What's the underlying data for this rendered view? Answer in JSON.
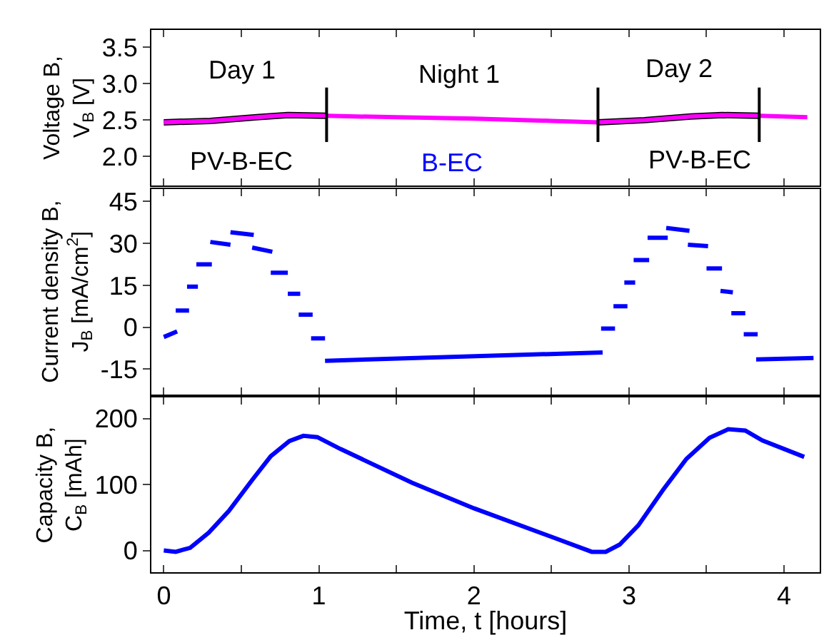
{
  "chart_data": [
    {
      "type": "line",
      "ylabel": "Voltage B,\nV$_{B}$ [V]",
      "xlim": [
        -0.08,
        4.23
      ],
      "ylim": [
        1.6,
        3.74
      ],
      "xticks": [
        {
          "value": 0,
          "label": null
        },
        {
          "value": 0.5,
          "label": null
        },
        {
          "value": 1,
          "label": null
        },
        {
          "value": 1.5,
          "label": null
        },
        {
          "value": 2,
          "label": null
        },
        {
          "value": 2.5,
          "label": null
        },
        {
          "value": 3,
          "label": null
        },
        {
          "value": 3.5,
          "label": null
        },
        {
          "value": 4,
          "label": null
        }
      ],
      "yticks": [
        {
          "value": 2.0,
          "label": "2.0"
        },
        {
          "value": 2.5,
          "label": "2.5"
        },
        {
          "value": 3.0,
          "label": "3.0"
        },
        {
          "value": 3.5,
          "label": "3.5"
        }
      ],
      "tick_labels": "y",
      "marker": "none",
      "series": [
        {
          "color": "#000000",
          "x": [
            0,
            0.3,
            0.6,
            0.8,
            1.05,
            null,
            2.8,
            3.1,
            3.4,
            3.6,
            3.84
          ],
          "values": [
            2.47,
            2.49,
            2.54,
            2.57,
            2.56,
            null,
            2.47,
            2.5,
            2.55,
            2.57,
            2.56
          ]
        },
        {
          "color": "#ff00ff",
          "x": [
            0,
            0.3,
            0.6,
            0.8,
            1.05,
            1.5,
            2.0,
            2.5,
            2.8,
            3.1,
            3.4,
            3.6,
            3.84,
            4.15
          ],
          "values": [
            2.47,
            2.49,
            2.54,
            2.57,
            2.56,
            2.54,
            2.52,
            2.49,
            2.47,
            2.5,
            2.55,
            2.57,
            2.56,
            2.54
          ]
        }
      ],
      "ref_lines": [
        {
          "axis": "x",
          "value": 1.05,
          "color": "#000000"
        },
        {
          "axis": "x",
          "value": 2.8,
          "color": "#000000"
        },
        {
          "axis": "x",
          "value": 3.84,
          "color": "#000000"
        }
      ],
      "annotations": [
        "Day 1",
        "Night 1",
        "Day 2",
        "PV-B-EC",
        "B-EC",
        "PV-B-EC"
      ]
    },
    {
      "type": "line",
      "ylabel": "Current density B,\nJ$_{B}$ [mA/cm$^{2}$]",
      "xlim": [
        -0.08,
        4.23
      ],
      "ylim": [
        -24,
        49.5
      ],
      "xticks": [
        {
          "value": 0,
          "label": null
        },
        {
          "value": 0.5,
          "label": null
        },
        {
          "value": 1,
          "label": null
        },
        {
          "value": 1.5,
          "label": null
        },
        {
          "value": 2,
          "label": null
        },
        {
          "value": 2.5,
          "label": null
        },
        {
          "value": 3,
          "label": null
        },
        {
          "value": 3.5,
          "label": null
        },
        {
          "value": 4,
          "label": null
        }
      ],
      "yticks": [
        -15,
        0,
        15,
        30,
        45
      ],
      "tick_labels": "y",
      "marker": "none",
      "series": [
        {
          "color": "#0000ff",
          "x": [
            0,
            0.086,
            null,
            0.077,
            0.163,
            null,
            0.15,
            0.22,
            null,
            0.21,
            0.31,
            null,
            0.3,
            0.43,
            null,
            0.43,
            0.58,
            null,
            0.57,
            0.7,
            null,
            0.69,
            0.8,
            null,
            0.8,
            0.88,
            null,
            0.87,
            0.96,
            null,
            0.95,
            1.04,
            null,
            1.04,
            2.83,
            null,
            2.82,
            2.91,
            null,
            2.9,
            2.99,
            null,
            2.97,
            3.04,
            null,
            3.03,
            3.13,
            null,
            3.12,
            3.25,
            null,
            3.24,
            3.39,
            null,
            3.38,
            3.51,
            null,
            3.5,
            3.6,
            null,
            3.59,
            3.67,
            null,
            3.66,
            3.75,
            null,
            3.74,
            3.83,
            null,
            3.82,
            4.19
          ],
          "values": [
            -3.5,
            -1.5,
            null,
            6,
            6,
            null,
            14.5,
            14.5,
            null,
            22.5,
            22.5,
            null,
            30.5,
            29.5,
            null,
            34,
            33,
            null,
            28.5,
            27,
            null,
            19.5,
            19.5,
            null,
            12,
            12,
            null,
            4.5,
            4.5,
            null,
            -4,
            -4,
            null,
            -12,
            -9,
            null,
            -0.5,
            -0.5,
            null,
            7.5,
            7.5,
            null,
            16,
            16,
            null,
            24,
            24,
            null,
            32,
            32,
            null,
            35.5,
            34.5,
            null,
            29.5,
            29,
            null,
            21,
            21,
            null,
            13,
            12.5,
            null,
            5,
            5,
            null,
            -2.5,
            -2.5,
            null,
            -11.5,
            -11
          ]
        }
      ]
    },
    {
      "type": "line",
      "xlabel": "Time, t [hours]",
      "ylabel": "Capacity B,\nC$_{B}$ [mAh]",
      "xlim": [
        -0.08,
        4.23
      ],
      "ylim": [
        -33,
        232
      ],
      "xticks": [
        0,
        {
          "value": 0.5,
          "label": null
        },
        1,
        {
          "value": 1.5,
          "label": null
        },
        2,
        {
          "value": 2.5,
          "label": null
        },
        3,
        {
          "value": 3.5,
          "label": null
        },
        4
      ],
      "yticks": [
        0,
        100,
        200
      ],
      "marker": "none",
      "series": [
        {
          "color": "#0000ff",
          "x": [
            0,
            0.077,
            0.17,
            0.29,
            0.42,
            0.57,
            0.69,
            0.81,
            0.9,
            0.99,
            1.14,
            1.6,
            2.0,
            2.52,
            2.76,
            2.85,
            2.94,
            3.06,
            3.22,
            3.37,
            3.52,
            3.64,
            3.75,
            3.86,
            4.13
          ],
          "values": [
            0,
            -2,
            4,
            27,
            60,
            107,
            143,
            166,
            174,
            172,
            154,
            103,
            64,
            19,
            -2,
            -2,
            9,
            38,
            92,
            139,
            171,
            184,
            182,
            167,
            142
          ]
        }
      ]
    }
  ]
}
